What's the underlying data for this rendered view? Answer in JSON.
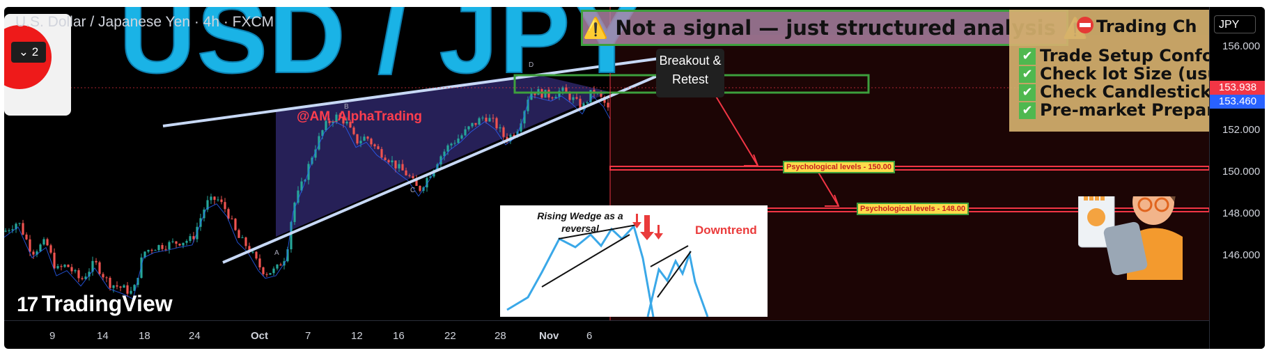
{
  "header": {
    "title": "U.S. Dollar / Japanese Yen · 4h · FXCM",
    "collapse_label": "⌄ 2"
  },
  "overlay": {
    "big_title": "USD / JPY",
    "handle": "@AM_AlphaTrading",
    "disclaimer": "⚠️ Not a signal — just structured analysis ⚠️",
    "breakout_label": "Breakout & Retest",
    "checklist": {
      "title": "Trading Ch",
      "items": [
        "Trade Setup Conform",
        "Check lot Size (usua",
        "Check Candlestick C",
        "Pre-market Prepara"
      ]
    },
    "psych_levels": [
      {
        "label": "Psychological levels - 150.00",
        "price": 150.0
      },
      {
        "label": "Psychological levels - 148.00",
        "price": 148.0
      }
    ],
    "pattern_labels": [
      "B",
      "D",
      "A",
      "C"
    ],
    "logo": "TradingView",
    "inset": {
      "title": "Rising Wedge as a reversal",
      "downtrend": "Downtrend"
    },
    "colors": {
      "bg": "#000000",
      "up": "#26a69a",
      "down": "#ef5350",
      "wedge_fill": "#2a2460",
      "accent_red": "#f23645",
      "price_blue": "#2962ff"
    }
  },
  "chart_data": {
    "type": "candlestick",
    "unit": "JPY",
    "y_ticks": [
      156.0,
      154.0,
      152.0,
      150.0,
      148.0,
      146.0
    ],
    "ylim": [
      144.95,
      157.15
    ],
    "x_ticks": [
      "9",
      "14",
      "18",
      "24",
      "Oct",
      "7",
      "12",
      "16",
      "22",
      "28",
      "Nov",
      "6"
    ],
    "price_badges": [
      {
        "value": "153.938",
        "color": "#f23645"
      },
      {
        "value": "153.460",
        "color": "#2962ff"
      }
    ],
    "path": [
      [
        0,
        148.4
      ],
      [
        20,
        148.8
      ],
      [
        40,
        147.6
      ],
      [
        60,
        148.0
      ],
      [
        75,
        146.9
      ],
      [
        90,
        147.1
      ],
      [
        110,
        146.5
      ],
      [
        130,
        147.2
      ],
      [
        150,
        146.4
      ],
      [
        170,
        146.2
      ],
      [
        185,
        146.0
      ],
      [
        200,
        147.6
      ],
      [
        215,
        147.8
      ],
      [
        235,
        147.9
      ],
      [
        250,
        148.0
      ],
      [
        270,
        148.1
      ],
      [
        290,
        149.5
      ],
      [
        305,
        149.7
      ],
      [
        320,
        149.2
      ],
      [
        335,
        148.2
      ],
      [
        350,
        147.8
      ],
      [
        365,
        147.1
      ],
      [
        375,
        146.8
      ],
      [
        390,
        146.9
      ],
      [
        405,
        147.5
      ],
      [
        415,
        149.4
      ],
      [
        430,
        150.4
      ],
      [
        445,
        151.6
      ],
      [
        460,
        152.5
      ],
      [
        475,
        152.9
      ],
      [
        490,
        152.7
      ],
      [
        505,
        151.9
      ],
      [
        520,
        152.1
      ],
      [
        535,
        151.6
      ],
      [
        550,
        151.3
      ],
      [
        565,
        150.9
      ],
      [
        580,
        150.6
      ],
      [
        595,
        150.0
      ],
      [
        610,
        150.6
      ],
      [
        625,
        151.3
      ],
      [
        640,
        151.8
      ],
      [
        655,
        152.1
      ],
      [
        670,
        152.5
      ],
      [
        690,
        152.9
      ],
      [
        705,
        152.6
      ],
      [
        720,
        152.0
      ],
      [
        735,
        152.3
      ],
      [
        745,
        153.0
      ],
      [
        755,
        153.9
      ],
      [
        770,
        153.8
      ],
      [
        785,
        153.7
      ],
      [
        800,
        153.9
      ],
      [
        815,
        153.6
      ],
      [
        830,
        153.2
      ],
      [
        845,
        153.9
      ],
      [
        860,
        153.5
      ],
      [
        870,
        153.0
      ]
    ]
  }
}
